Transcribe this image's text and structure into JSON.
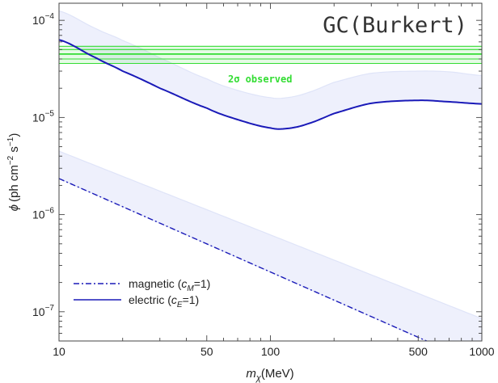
{
  "chart_data": {
    "type": "line",
    "title": "GC(Burkert)",
    "xlabel_main": "m",
    "xlabel_sub": "χ",
    "xlabel_unit": "(MeV)",
    "ylabel_phi": "ϕ",
    "ylabel_unit": "(ph cm",
    "ylabel_exp1": "−2",
    "ylabel_mid": " s",
    "ylabel_exp2": "−1",
    "ylabel_close": ")",
    "x_scale": "log",
    "y_scale": "log",
    "xlim": [
      10,
      1000
    ],
    "ylim": [
      5e-08,
      0.00015
    ],
    "x_ticks": [
      {
        "value": 10,
        "label": "10"
      },
      {
        "value": 50,
        "label": "50"
      },
      {
        "value": 100,
        "label": "100"
      },
      {
        "value": 500,
        "label": "500"
      },
      {
        "value": 1000,
        "label": "1000"
      }
    ],
    "y_ticks": [
      {
        "value": 1e-07,
        "base": "10",
        "exp": "−7"
      },
      {
        "value": 1e-06,
        "base": "10",
        "exp": "−6"
      },
      {
        "value": 1e-05,
        "base": "10",
        "exp": "−5"
      },
      {
        "value": 0.0001,
        "base": "10",
        "exp": "−4"
      }
    ],
    "observed": {
      "label": "2σ observed",
      "center": 4.5e-05,
      "inner": [
        4e-05,
        5e-05
      ],
      "outer": [
        3.6e-05,
        5.4e-05
      ],
      "color": "#33dd33"
    },
    "bands": [
      {
        "x": [
          10,
          15,
          20,
          30,
          50,
          70,
          100,
          120,
          150,
          200,
          300,
          500,
          700,
          1000
        ],
        "upper": [
          0.000125,
          8.2e-05,
          6.2e-05,
          4.1e-05,
          2.5e-05,
          1.9e-05,
          1.6e-05,
          1.6e-05,
          1.8e-05,
          2.3e-05,
          2.85e-05,
          3e-05,
          2.95e-05,
          2.7e-05
        ],
        "lower": [
          6.3e-05,
          4.1e-05,
          3e-05,
          2e-05,
          1.25e-05,
          9.5e-06,
          7.8e-06,
          7.7e-06,
          8.6e-06,
          1.1e-05,
          1.4e-05,
          1.5e-05,
          1.45e-05,
          1.38e-05
        ],
        "color": "#eef0fc"
      },
      {
        "x": [
          10,
          1000
        ],
        "upper": [
          4.5e-06,
          8.5e-08
        ],
        "lower": [
          2.35e-06,
          2.8e-08
        ],
        "color": "#eef0fc"
      }
    ],
    "series": [
      {
        "name": "electric (c_E=1)",
        "legend_text": "electric (",
        "legend_c": "c",
        "legend_sub": "E",
        "legend_tail": "=1)",
        "style": "solid",
        "color": "#1a1ab8",
        "x": [
          10,
          15,
          20,
          30,
          50,
          70,
          100,
          120,
          150,
          200,
          300,
          500,
          700,
          1000
        ],
        "y": [
          6.3e-05,
          4.1e-05,
          3e-05,
          2e-05,
          1.25e-05,
          9.5e-06,
          7.8e-06,
          7.7e-06,
          8.6e-06,
          1.1e-05,
          1.4e-05,
          1.5e-05,
          1.45e-05,
          1.38e-05
        ]
      },
      {
        "name": "magnetic (c_M=1)",
        "legend_text": "magnetic (",
        "legend_c": "c",
        "legend_sub": "M",
        "legend_tail": "=1)",
        "style": "dashdot",
        "color": "#1a1ab8",
        "x": [
          10,
          1000
        ],
        "y": [
          2.35e-06,
          2.8e-08
        ]
      }
    ]
  }
}
